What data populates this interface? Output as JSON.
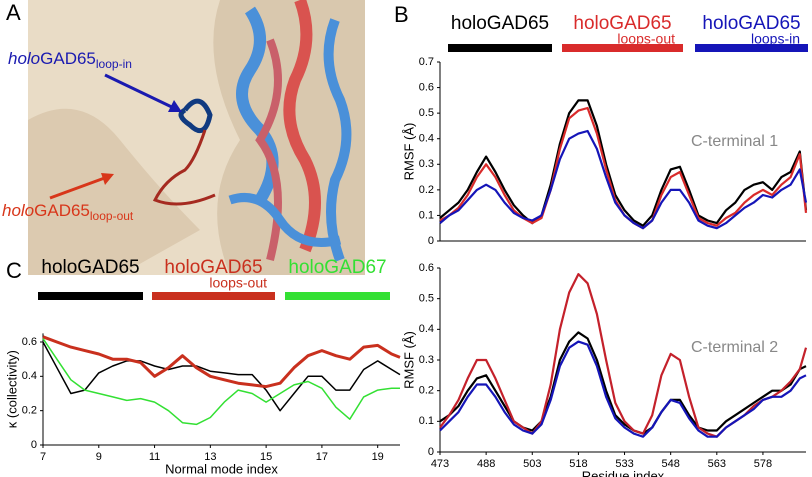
{
  "figure": {
    "panel_labels": [
      "A",
      "B",
      "C"
    ],
    "structure_labels": [
      {
        "prefix": "holo",
        "name": "GAD65",
        "sub": "loop-in",
        "color": "#1a1ab0"
      },
      {
        "prefix": "holo",
        "name": "GAD65",
        "sub": "loop-out",
        "color": "#d8361a"
      }
    ]
  },
  "chart_data": [
    {
      "type": "line",
      "ylabel": "RMSF (Å)",
      "annotation": "C-terminal 1",
      "legend": "top",
      "x": [
        473,
        476,
        479,
        482,
        485,
        488,
        491,
        494,
        497,
        500,
        503,
        506,
        509,
        512,
        515,
        518,
        521,
        524,
        527,
        530,
        533,
        536,
        539,
        542,
        545,
        548,
        551,
        554,
        557,
        560,
        563,
        566,
        569,
        572,
        575,
        578,
        581,
        584,
        587,
        590,
        592
      ],
      "xlim": [
        473,
        592
      ],
      "ylim": [
        0,
        0.7
      ],
      "yticks": [
        0,
        0.1,
        0.2,
        0.3,
        0.4,
        0.5,
        0.6,
        0.7
      ],
      "series": [
        {
          "name": "holoGAD65",
          "color": "#000000",
          "values": [
            0.09,
            0.12,
            0.15,
            0.2,
            0.27,
            0.33,
            0.27,
            0.2,
            0.14,
            0.1,
            0.07,
            0.1,
            0.22,
            0.38,
            0.5,
            0.55,
            0.55,
            0.45,
            0.3,
            0.18,
            0.12,
            0.08,
            0.06,
            0.1,
            0.2,
            0.28,
            0.29,
            0.2,
            0.1,
            0.08,
            0.07,
            0.12,
            0.15,
            0.2,
            0.22,
            0.23,
            0.2,
            0.25,
            0.27,
            0.35,
            0.12
          ]
        },
        {
          "name": "holoGAD65",
          "subscript": "loops-out",
          "color": "#d92b2b",
          "values": [
            0.08,
            0.1,
            0.13,
            0.18,
            0.25,
            0.3,
            0.25,
            0.18,
            0.12,
            0.09,
            0.07,
            0.09,
            0.2,
            0.36,
            0.48,
            0.51,
            0.52,
            0.42,
            0.28,
            0.16,
            0.1,
            0.07,
            0.05,
            0.08,
            0.18,
            0.25,
            0.27,
            0.18,
            0.09,
            0.07,
            0.06,
            0.09,
            0.11,
            0.15,
            0.18,
            0.2,
            0.18,
            0.22,
            0.25,
            0.34,
            0.11
          ]
        },
        {
          "name": "holoGAD65",
          "subscript": "loops-in",
          "color": "#1515b8",
          "values": [
            0.07,
            0.1,
            0.12,
            0.16,
            0.2,
            0.22,
            0.2,
            0.15,
            0.11,
            0.09,
            0.08,
            0.1,
            0.2,
            0.32,
            0.4,
            0.42,
            0.43,
            0.36,
            0.25,
            0.15,
            0.1,
            0.07,
            0.05,
            0.08,
            0.15,
            0.2,
            0.2,
            0.15,
            0.08,
            0.06,
            0.05,
            0.07,
            0.1,
            0.13,
            0.15,
            0.18,
            0.17,
            0.2,
            0.22,
            0.28,
            0.15
          ]
        }
      ]
    },
    {
      "type": "line",
      "ylabel": "RMSF (Å)",
      "xlabel": "Residue index",
      "annotation": "C-terminal 2",
      "x": [
        473,
        476,
        479,
        482,
        485,
        488,
        491,
        494,
        497,
        500,
        503,
        506,
        509,
        512,
        515,
        518,
        521,
        524,
        527,
        530,
        533,
        536,
        539,
        542,
        545,
        548,
        551,
        554,
        557,
        560,
        563,
        566,
        569,
        572,
        575,
        578,
        581,
        584,
        587,
        590,
        592
      ],
      "xlim": [
        473,
        592
      ],
      "xticks": [
        473,
        488,
        503,
        518,
        533,
        548,
        563,
        578
      ],
      "ylim": [
        0,
        0.6
      ],
      "yticks": [
        0,
        0.1,
        0.2,
        0.3,
        0.4,
        0.5,
        0.6
      ],
      "series": [
        {
          "color": "#000000",
          "values": [
            0.1,
            0.12,
            0.15,
            0.2,
            0.24,
            0.25,
            0.2,
            0.15,
            0.1,
            0.08,
            0.07,
            0.1,
            0.18,
            0.3,
            0.36,
            0.39,
            0.37,
            0.3,
            0.2,
            0.12,
            0.09,
            0.07,
            0.06,
            0.08,
            0.13,
            0.17,
            0.17,
            0.12,
            0.08,
            0.07,
            0.07,
            0.1,
            0.12,
            0.14,
            0.16,
            0.18,
            0.2,
            0.2,
            0.22,
            0.27,
            0.28
          ]
        },
        {
          "color": "#c4212b",
          "values": [
            0.08,
            0.12,
            0.17,
            0.24,
            0.3,
            0.3,
            0.24,
            0.17,
            0.1,
            0.08,
            0.06,
            0.1,
            0.22,
            0.4,
            0.52,
            0.58,
            0.55,
            0.45,
            0.3,
            0.16,
            0.1,
            0.07,
            0.06,
            0.12,
            0.25,
            0.32,
            0.3,
            0.18,
            0.08,
            0.06,
            0.05,
            0.08,
            0.1,
            0.12,
            0.15,
            0.17,
            0.18,
            0.2,
            0.23,
            0.27,
            0.34
          ]
        },
        {
          "color": "#1515b8",
          "values": [
            0.07,
            0.1,
            0.13,
            0.18,
            0.22,
            0.22,
            0.18,
            0.13,
            0.09,
            0.07,
            0.06,
            0.09,
            0.17,
            0.28,
            0.34,
            0.36,
            0.35,
            0.28,
            0.18,
            0.11,
            0.08,
            0.06,
            0.05,
            0.08,
            0.13,
            0.17,
            0.16,
            0.11,
            0.07,
            0.05,
            0.05,
            0.08,
            0.1,
            0.12,
            0.14,
            0.17,
            0.18,
            0.18,
            0.2,
            0.24,
            0.25
          ]
        }
      ]
    },
    {
      "type": "line",
      "ylabel": "κ (collectivity)",
      "xlabel": "Normal mode index",
      "legend": "top",
      "x": [
        7,
        7.5,
        8,
        8.5,
        9,
        9.5,
        10,
        10.5,
        11,
        11.5,
        12,
        12.5,
        13,
        13.5,
        14,
        14.5,
        15,
        15.5,
        16,
        16.5,
        17,
        17.5,
        18,
        18.5,
        19,
        19.5,
        19.8
      ],
      "xlim": [
        7,
        19.8
      ],
      "xticks": [
        7,
        9,
        11,
        13,
        15,
        17,
        19
      ],
      "ylim": [
        0,
        0.65
      ],
      "yticks": [
        0,
        0.2,
        0.4,
        0.6
      ],
      "series": [
        {
          "name": "holoGAD65",
          "color": "#000000",
          "width": 1.5,
          "values": [
            0.6,
            0.45,
            0.3,
            0.32,
            0.42,
            0.46,
            0.49,
            0.49,
            0.46,
            0.44,
            0.46,
            0.46,
            0.43,
            0.42,
            0.41,
            0.41,
            0.32,
            0.2,
            0.3,
            0.4,
            0.4,
            0.32,
            0.32,
            0.44,
            0.49,
            0.44,
            0.41
          ]
        },
        {
          "name": "holoGAD65",
          "subscript": "loops-out",
          "color": "#c9301e",
          "width": 3,
          "values": [
            0.63,
            0.6,
            0.57,
            0.55,
            0.53,
            0.5,
            0.5,
            0.48,
            0.4,
            0.45,
            0.52,
            0.45,
            0.4,
            0.38,
            0.36,
            0.35,
            0.34,
            0.36,
            0.45,
            0.52,
            0.55,
            0.52,
            0.5,
            0.57,
            0.58,
            0.53,
            0.51
          ]
        },
        {
          "name": "holoGAD67",
          "color": "#33e033",
          "width": 1.5,
          "values": [
            0.62,
            0.5,
            0.38,
            0.32,
            0.3,
            0.28,
            0.26,
            0.27,
            0.25,
            0.2,
            0.13,
            0.12,
            0.16,
            0.25,
            0.32,
            0.3,
            0.25,
            0.3,
            0.35,
            0.37,
            0.33,
            0.22,
            0.15,
            0.28,
            0.32,
            0.33,
            0.33
          ]
        }
      ]
    }
  ]
}
